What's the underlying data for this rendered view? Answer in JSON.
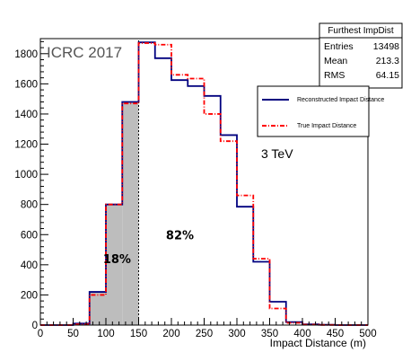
{
  "chart_data": {
    "type": "histogram",
    "stats_box": {
      "title": "Furthest ImpDist",
      "rows": [
        {
          "label": "Entries",
          "value": "13498"
        },
        {
          "label": "Mean",
          "value": "213.3"
        },
        {
          "label": "RMS",
          "value": "64.15"
        }
      ]
    },
    "watermark": "ICRC 2017",
    "energy_label": "3 TeV",
    "xlabel": "Impact Distance (m)",
    "ylabel": "",
    "xlim": [
      0,
      500
    ],
    "ylim": [
      0,
      1900
    ],
    "x_ticks": [
      0,
      50,
      100,
      150,
      200,
      250,
      300,
      350,
      400,
      450,
      500
    ],
    "y_ticks": [
      0,
      200,
      400,
      600,
      800,
      1000,
      1200,
      1400,
      1600,
      1800
    ],
    "bin_edges": [
      0,
      25,
      50,
      75,
      100,
      125,
      150,
      175,
      200,
      225,
      250,
      275,
      300,
      325,
      350,
      375,
      400,
      425,
      450,
      475,
      500
    ],
    "series": [
      {
        "name": "Reconstructed Impact Distance",
        "color": "#00007f",
        "style": "solid",
        "values": [
          0,
          0,
          10,
          220,
          800,
          1480,
          1875,
          1770,
          1625,
          1585,
          1520,
          1260,
          785,
          420,
          155,
          20,
          5,
          2,
          0,
          0
        ]
      },
      {
        "name": "True Impact Distance",
        "color": "#ff0000",
        "style": "dashed",
        "values": [
          0,
          0,
          5,
          200,
          800,
          1470,
          1870,
          1860,
          1660,
          1635,
          1400,
          1220,
          860,
          440,
          110,
          15,
          3,
          1,
          0,
          0
        ]
      }
    ],
    "shaded_region": {
      "from": 0,
      "to": 150,
      "color": "#bdbdbd"
    },
    "cut_line": 150,
    "annotations": [
      {
        "text": "18%",
        "x": 117,
        "y": 410
      },
      {
        "text": "82%",
        "x": 213,
        "y": 570
      }
    ]
  }
}
